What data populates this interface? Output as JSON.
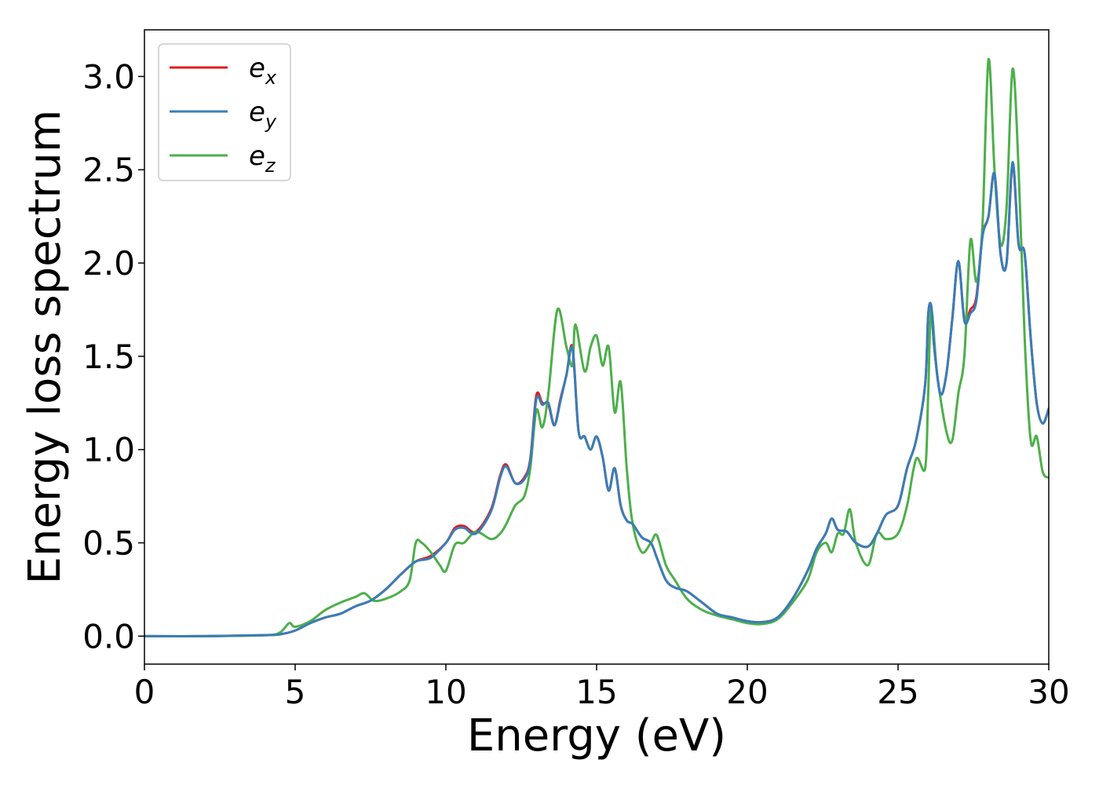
{
  "chart_data": {
    "type": "line",
    "xlabel": "Energy (eV)",
    "ylabel": "Energy loss spectrum",
    "xlim": [
      0,
      30
    ],
    "ylim": [
      -0.15,
      3.25
    ],
    "xticks": [
      0,
      5,
      10,
      15,
      20,
      25,
      30
    ],
    "xtick_labels": [
      "0",
      "5",
      "10",
      "15",
      "20",
      "25",
      "30"
    ],
    "yticks": [
      0.0,
      0.5,
      1.0,
      1.5,
      2.0,
      2.5,
      3.0
    ],
    "ytick_labels": [
      "0.0",
      "0.5",
      "1.0",
      "1.5",
      "2.0",
      "2.5",
      "3.0"
    ],
    "grid": false,
    "legend_position": "top-left",
    "series": [
      {
        "name": "e_x",
        "legend_base": "e",
        "legend_sub": "x",
        "color": "#e41a1c",
        "x": [
          0,
          2,
          4,
          4.5,
          5,
          5.5,
          6,
          6.5,
          7,
          7.5,
          8,
          8.5,
          9,
          9.5,
          10,
          10.3,
          10.6,
          11,
          11.5,
          11.8,
          12,
          12.3,
          12.6,
          12.8,
          13,
          13.2,
          13.4,
          13.6,
          13.8,
          14,
          14.2,
          14.4,
          14.6,
          14.8,
          15,
          15.2,
          15.4,
          15.6,
          15.8,
          16,
          16.2,
          16.5,
          16.8,
          17,
          17.3,
          17.6,
          18,
          18.5,
          19,
          19.5,
          20,
          20.5,
          21,
          21.5,
          22,
          22.3,
          22.6,
          22.8,
          23,
          23.3,
          23.6,
          24,
          24.3,
          24.6,
          25,
          25.3,
          25.6,
          25.9,
          26,
          26.1,
          26.2,
          26.4,
          26.6,
          26.8,
          27,
          27.2,
          27.4,
          27.6,
          27.8,
          28,
          28.2,
          28.4,
          28.6,
          28.8,
          29,
          29.2,
          29.4,
          29.6,
          29.8,
          30
        ],
        "y": [
          0.0,
          0.0,
          0.005,
          0.01,
          0.03,
          0.07,
          0.1,
          0.12,
          0.16,
          0.19,
          0.25,
          0.33,
          0.4,
          0.43,
          0.5,
          0.58,
          0.59,
          0.56,
          0.68,
          0.86,
          0.92,
          0.82,
          0.85,
          0.95,
          1.29,
          1.25,
          1.24,
          1.13,
          1.27,
          1.4,
          1.55,
          1.1,
          1.07,
          1.0,
          1.07,
          0.96,
          0.78,
          0.9,
          0.7,
          0.62,
          0.6,
          0.53,
          0.5,
          0.42,
          0.3,
          0.26,
          0.24,
          0.18,
          0.12,
          0.1,
          0.08,
          0.075,
          0.1,
          0.2,
          0.35,
          0.47,
          0.55,
          0.63,
          0.57,
          0.56,
          0.5,
          0.48,
          0.55,
          0.65,
          0.7,
          0.9,
          1.05,
          1.35,
          1.72,
          1.77,
          1.55,
          1.3,
          1.4,
          1.7,
          2.01,
          1.7,
          1.75,
          1.82,
          2.15,
          2.25,
          2.48,
          2.05,
          2.0,
          2.53,
          2.1,
          2.05,
          1.6,
          1.25,
          1.14,
          1.22
        ]
      },
      {
        "name": "e_y",
        "legend_base": "e",
        "legend_sub": "y",
        "color": "#377eb8",
        "x": [
          0,
          2,
          4,
          4.5,
          5,
          5.5,
          6,
          6.5,
          7,
          7.5,
          8,
          8.5,
          9,
          9.5,
          10,
          10.3,
          10.6,
          11,
          11.5,
          11.8,
          12,
          12.3,
          12.6,
          12.8,
          13,
          13.2,
          13.4,
          13.6,
          13.8,
          14,
          14.2,
          14.4,
          14.6,
          14.8,
          15,
          15.2,
          15.4,
          15.6,
          15.8,
          16,
          16.2,
          16.5,
          16.8,
          17,
          17.3,
          17.6,
          18,
          18.5,
          19,
          19.5,
          20,
          20.5,
          21,
          21.5,
          22,
          22.3,
          22.6,
          22.8,
          23,
          23.3,
          23.6,
          24,
          24.3,
          24.6,
          25,
          25.3,
          25.6,
          25.9,
          26,
          26.1,
          26.2,
          26.4,
          26.6,
          26.8,
          27,
          27.2,
          27.4,
          27.6,
          27.8,
          28,
          28.2,
          28.4,
          28.6,
          28.8,
          29,
          29.2,
          29.4,
          29.6,
          29.8,
          30
        ],
        "y": [
          0.0,
          0.0,
          0.005,
          0.01,
          0.03,
          0.07,
          0.1,
          0.12,
          0.16,
          0.19,
          0.25,
          0.33,
          0.4,
          0.42,
          0.5,
          0.57,
          0.58,
          0.55,
          0.67,
          0.85,
          0.91,
          0.82,
          0.84,
          0.94,
          1.27,
          1.24,
          1.25,
          1.13,
          1.26,
          1.4,
          1.54,
          1.1,
          1.07,
          1.0,
          1.07,
          0.96,
          0.78,
          0.9,
          0.7,
          0.62,
          0.6,
          0.53,
          0.5,
          0.42,
          0.3,
          0.26,
          0.24,
          0.18,
          0.12,
          0.1,
          0.08,
          0.075,
          0.1,
          0.2,
          0.35,
          0.47,
          0.55,
          0.63,
          0.57,
          0.56,
          0.5,
          0.48,
          0.55,
          0.65,
          0.7,
          0.9,
          1.05,
          1.35,
          1.72,
          1.77,
          1.55,
          1.3,
          1.4,
          1.7,
          2.01,
          1.69,
          1.73,
          1.8,
          2.14,
          2.25,
          2.48,
          2.05,
          2.0,
          2.54,
          2.1,
          2.05,
          1.6,
          1.25,
          1.14,
          1.22
        ]
      },
      {
        "name": "e_z",
        "legend_base": "e",
        "legend_sub": "z",
        "color": "#4daf4a",
        "x": [
          0,
          2,
          4,
          4.5,
          4.8,
          5,
          5.5,
          6,
          6.5,
          7,
          7.3,
          7.6,
          8,
          8.5,
          8.8,
          9,
          9.2,
          9.5,
          9.8,
          10,
          10.3,
          10.6,
          11,
          11.5,
          11.8,
          12,
          12.3,
          12.6,
          12.8,
          13,
          13.2,
          13.4,
          13.7,
          14,
          14.2,
          14.3,
          14.6,
          14.8,
          15,
          15.2,
          15.4,
          15.6,
          15.8,
          16,
          16.2,
          16.5,
          16.8,
          17,
          17.3,
          17.6,
          18,
          18.5,
          19,
          19.5,
          20,
          20.5,
          21,
          21.5,
          22,
          22.3,
          22.6,
          22.8,
          23,
          23.2,
          23.4,
          23.6,
          24,
          24.3,
          24.6,
          25,
          25.3,
          25.6,
          25.9,
          26,
          26.1,
          26.3,
          26.6,
          26.8,
          27,
          27.2,
          27.4,
          27.6,
          27.8,
          28,
          28.2,
          28.4,
          28.6,
          28.8,
          29,
          29.2,
          29.4,
          29.6,
          29.8,
          30
        ],
        "y": [
          0.0,
          0.0,
          0.005,
          0.02,
          0.07,
          0.05,
          0.08,
          0.14,
          0.18,
          0.21,
          0.23,
          0.19,
          0.2,
          0.24,
          0.3,
          0.5,
          0.5,
          0.45,
          0.38,
          0.35,
          0.49,
          0.5,
          0.56,
          0.52,
          0.55,
          0.6,
          0.7,
          0.75,
          0.9,
          1.21,
          1.12,
          1.3,
          1.75,
          1.55,
          1.45,
          1.67,
          1.42,
          1.55,
          1.61,
          1.45,
          1.55,
          1.2,
          1.36,
          0.9,
          0.6,
          0.45,
          0.5,
          0.54,
          0.38,
          0.3,
          0.2,
          0.14,
          0.11,
          0.09,
          0.07,
          0.065,
          0.09,
          0.18,
          0.3,
          0.45,
          0.5,
          0.45,
          0.55,
          0.55,
          0.68,
          0.5,
          0.38,
          0.55,
          0.52,
          0.55,
          0.7,
          0.95,
          0.9,
          1.3,
          1.75,
          1.4,
          1.1,
          1.05,
          1.3,
          1.5,
          2.12,
          1.9,
          2.2,
          3.09,
          2.5,
          2.1,
          2.3,
          3.04,
          2.5,
          1.6,
          1.05,
          1.07,
          0.88,
          0.85
        ]
      }
    ]
  }
}
